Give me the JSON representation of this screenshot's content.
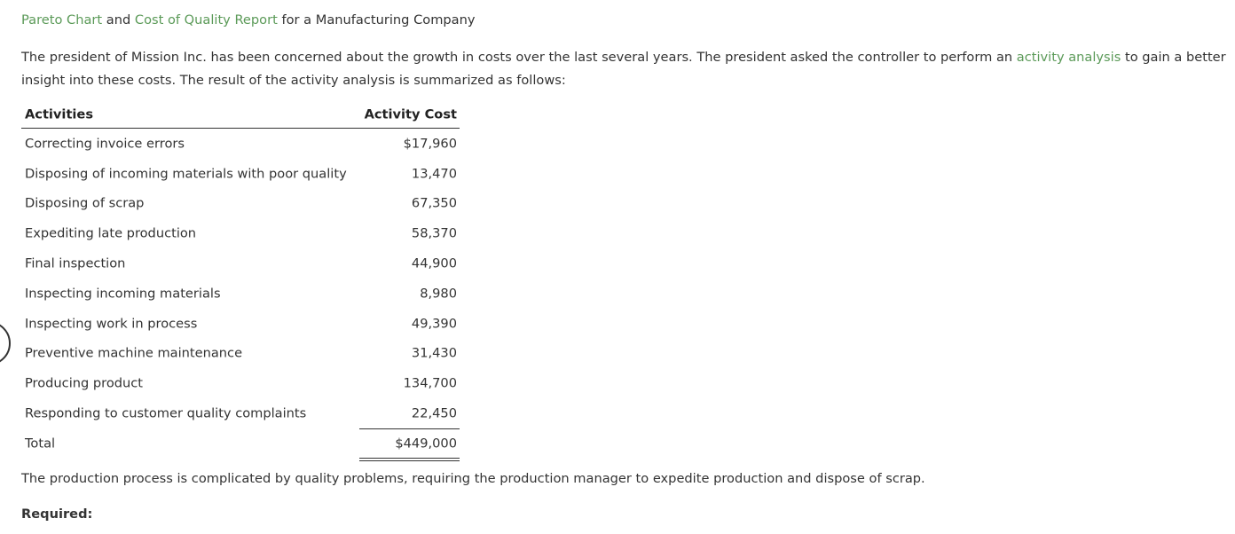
{
  "title": [
    "Pareto Chart",
    " and ",
    "Cost of Quality Report",
    " for a Manufacturing Company"
  ],
  "intro": [
    "The president of Mission Inc. has been concerned about the growth in costs over the last several years. The president asked the controller to perform an ",
    "activity analysis",
    " to gain a better insight into these costs. The result of the activity analysis is summarized as follows:"
  ],
  "table": {
    "header": [
      "Activities",
      "Activity Cost"
    ],
    "rows": [
      [
        "Correcting invoice errors",
        "$17,960"
      ],
      [
        "Disposing of incoming materials with poor quality",
        "13,470"
      ],
      [
        "Disposing of scrap",
        "67,350"
      ],
      [
        "Expediting late production",
        "58,370"
      ],
      [
        "Final inspection",
        "44,900"
      ],
      [
        "Inspecting incoming materials",
        "8,980"
      ],
      [
        "Inspecting work in process",
        "49,390"
      ],
      [
        "Preventive machine maintenance",
        "31,430"
      ],
      [
        "Producing product",
        "134,700"
      ],
      [
        "Responding to customer quality complaints",
        "22,450"
      ]
    ],
    "total": [
      "Total",
      "$449,000"
    ]
  },
  "note": "The production process is complicated by quality problems, requiring the production manager to expedite production and dispose of scrap.",
  "required": "Required:"
}
